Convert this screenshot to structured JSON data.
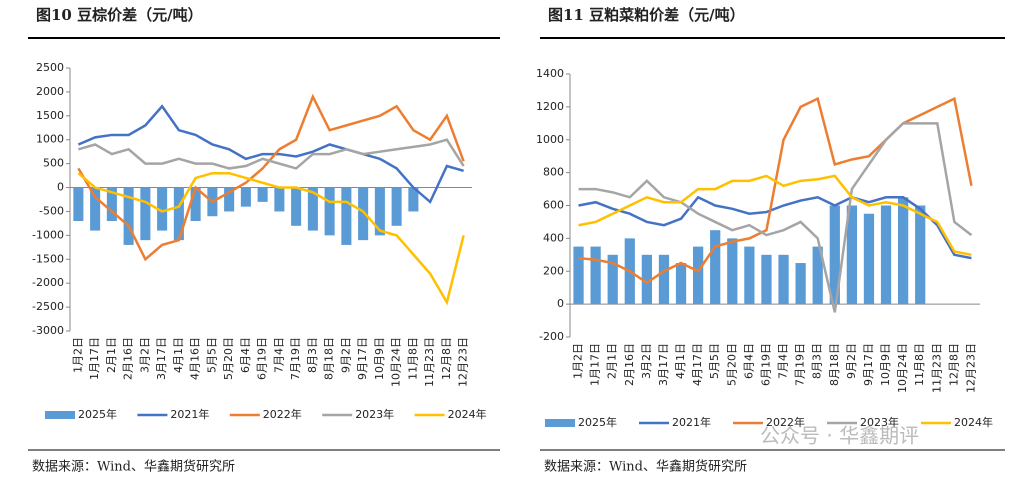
{
  "chart_data": [
    {
      "type": "combo",
      "title": "图10 豆棕价差（元/吨）",
      "source": "数据来源：Wind、华鑫期货研究所",
      "categories": [
        "1月2日",
        "1月17日",
        "2月1日",
        "2月16日",
        "3月2日",
        "3月17日",
        "4月1日",
        "4月16日",
        "5月5日",
        "5月20日",
        "6月4日",
        "6月19日",
        "7月4日",
        "7月19日",
        "8月3日",
        "8月18日",
        "9月2日",
        "9月17日",
        "10月9日",
        "10月24日",
        "11月8日",
        "11月23日",
        "12月8日",
        "12月23日"
      ],
      "ylim": [
        -3000,
        2500
      ],
      "yticks": [
        -3000,
        -2500,
        -2000,
        -1500,
        -1000,
        -500,
        0,
        500,
        1000,
        1500,
        2000,
        2500
      ],
      "series": [
        {
          "name": "2025年",
          "type": "bar",
          "color": "#5b9bd5",
          "values": [
            -700,
            -900,
            -700,
            -1200,
            -1100,
            -900,
            -1100,
            -700,
            -600,
            -500,
            -400,
            -300,
            -500,
            -800,
            -900,
            -1000,
            -1200,
            -1100,
            -1000,
            -800,
            -500,
            null,
            null,
            null
          ]
        },
        {
          "name": "2021年",
          "type": "line",
          "color": "#4472c4",
          "values": [
            900,
            1050,
            1100,
            1100,
            1300,
            1700,
            1200,
            1100,
            900,
            800,
            600,
            700,
            700,
            650,
            750,
            900,
            800,
            700,
            600,
            400,
            0,
            -300,
            450,
            350
          ]
        },
        {
          "name": "2022年",
          "type": "line",
          "color": "#ed7d31",
          "values": [
            400,
            -200,
            -500,
            -800,
            -1500,
            -1200,
            -1100,
            0,
            -300,
            -100,
            100,
            400,
            800,
            1000,
            1900,
            1200,
            1300,
            1400,
            1500,
            1700,
            1200,
            1000,
            1500,
            550
          ]
        },
        {
          "name": "2023年",
          "type": "line",
          "color": "#a5a5a5",
          "values": [
            800,
            900,
            700,
            800,
            500,
            500,
            600,
            500,
            500,
            400,
            450,
            600,
            500,
            400,
            700,
            700,
            800,
            700,
            750,
            800,
            850,
            900,
            1000,
            450
          ]
        },
        {
          "name": "2024年",
          "type": "line",
          "color": "#ffc000",
          "values": [
            300,
            0,
            -100,
            -200,
            -300,
            -500,
            -400,
            200,
            300,
            300,
            200,
            100,
            0,
            0,
            -100,
            -300,
            -300,
            -500,
            -900,
            -1000,
            -1400,
            -1800,
            -2400,
            -1000
          ]
        }
      ]
    },
    {
      "type": "combo",
      "title": "图11 豆粕菜粕价差（元/吨）",
      "source": "数据来源：Wind、华鑫期货研究所",
      "categories": [
        "1月2日",
        "1月17日",
        "2月1日",
        "2月16日",
        "3月2日",
        "3月17日",
        "4月1日",
        "4月17日",
        "5月5日",
        "5月20日",
        "6月4日",
        "6月19日",
        "7月4日",
        "7月19日",
        "8月3日",
        "8月18日",
        "9月2日",
        "9月17日",
        "10月9日",
        "10月24日",
        "11月8日",
        "11月23日",
        "12月8日",
        "12月23日"
      ],
      "ylim": [
        -200,
        1400
      ],
      "yticks": [
        -200,
        0,
        200,
        400,
        600,
        800,
        1000,
        1200,
        1400
      ],
      "series": [
        {
          "name": "2025年",
          "type": "bar",
          "color": "#5b9bd5",
          "values": [
            350,
            350,
            300,
            400,
            300,
            300,
            250,
            350,
            450,
            400,
            350,
            300,
            300,
            250,
            350,
            600,
            600,
            550,
            600,
            650,
            600,
            null,
            null,
            null
          ]
        },
        {
          "name": "2021年",
          "type": "line",
          "color": "#4472c4",
          "values": [
            600,
            620,
            580,
            550,
            500,
            480,
            520,
            650,
            600,
            580,
            550,
            560,
            600,
            630,
            650,
            600,
            650,
            620,
            650,
            650,
            580,
            480,
            300,
            280
          ]
        },
        {
          "name": "2022年",
          "type": "line",
          "color": "#ed7d31",
          "values": [
            280,
            270,
            250,
            200,
            130,
            200,
            250,
            200,
            350,
            380,
            400,
            450,
            1000,
            1200,
            1250,
            850,
            880,
            900,
            1000,
            1100,
            1150,
            1200,
            1250,
            720
          ]
        },
        {
          "name": "2023年",
          "type": "line",
          "color": "#a5a5a5",
          "values": [
            700,
            700,
            680,
            650,
            750,
            650,
            620,
            550,
            500,
            450,
            480,
            420,
            450,
            500,
            400,
            -50,
            700,
            850,
            1000,
            1100,
            1100,
            1100,
            500,
            420
          ]
        },
        {
          "name": "2024年",
          "type": "line",
          "color": "#ffc000",
          "values": [
            480,
            500,
            550,
            600,
            650,
            620,
            620,
            700,
            700,
            750,
            750,
            780,
            720,
            750,
            760,
            780,
            650,
            600,
            620,
            600,
            550,
            500,
            320,
            300
          ]
        }
      ]
    }
  ],
  "watermark": "公众号 · 华鑫期评"
}
